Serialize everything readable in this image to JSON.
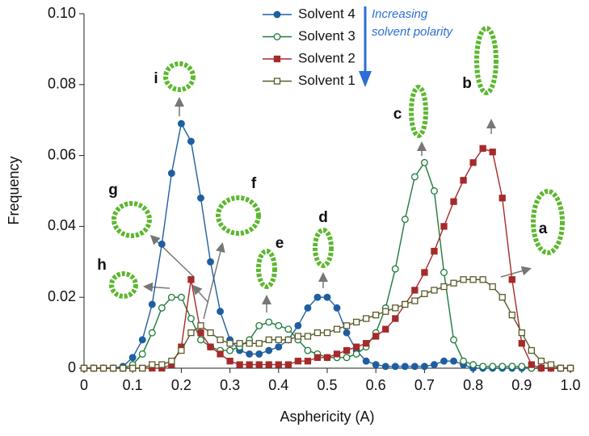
{
  "chart_data": {
    "type": "line",
    "x_label": "Asphericity (A)",
    "y_label": "Frequency",
    "x": [
      0,
      0.02,
      0.04,
      0.06,
      0.08,
      0.1,
      0.12,
      0.14,
      0.16,
      0.18,
      0.2,
      0.22,
      0.24,
      0.26,
      0.28,
      0.3,
      0.32,
      0.34,
      0.36,
      0.38,
      0.4,
      0.42,
      0.44,
      0.46,
      0.48,
      0.5,
      0.52,
      0.54,
      0.56,
      0.58,
      0.6,
      0.62,
      0.64,
      0.66,
      0.68,
      0.7,
      0.72,
      0.74,
      0.76,
      0.78,
      0.8,
      0.82,
      0.84,
      0.86,
      0.88,
      0.9,
      0.92,
      0.94,
      0.96,
      0.98,
      1
    ],
    "series": [
      {
        "name": "Solvent 4",
        "color": "#1f5fa0",
        "marker": "circle",
        "filled": true,
        "values": [
          0,
          0,
          0,
          0,
          0.0005,
          0.003,
          0.008,
          0.018,
          0.035,
          0.055,
          0.069,
          0.064,
          0.048,
          0.03,
          0.016,
          0.008,
          0.005,
          0.004,
          0.004,
          0.005,
          0.006,
          0.008,
          0.012,
          0.017,
          0.02,
          0.02,
          0.017,
          0.01,
          0.005,
          0.002,
          0.001,
          0.0005,
          0.0005,
          0.0005,
          0.0005,
          0.0005,
          0.001,
          0.002,
          0.002,
          0.001,
          0,
          0,
          0,
          0,
          0,
          0,
          0,
          0,
          0,
          0,
          0
        ]
      },
      {
        "name": "Solvent 3",
        "color": "#1e7a3a",
        "marker": "circle",
        "filled": false,
        "values": [
          0,
          0,
          0,
          0,
          0,
          0.001,
          0.004,
          0.01,
          0.017,
          0.02,
          0.02,
          0.014,
          0.008,
          0.006,
          0.005,
          0.005,
          0.006,
          0.008,
          0.012,
          0.013,
          0.012,
          0.011,
          0.008,
          0.005,
          0.004,
          0.003,
          0.003,
          0.003,
          0.004,
          0.006,
          0.01,
          0.017,
          0.028,
          0.042,
          0.054,
          0.058,
          0.05,
          0.027,
          0.008,
          0.002,
          0.001,
          0.0005,
          0.0005,
          0.0005,
          0.0005,
          0.0005,
          0,
          0,
          0,
          0,
          0
        ]
      },
      {
        "name": "Solvent 2",
        "color": "#a52a2a",
        "marker": "square",
        "filled": true,
        "values": [
          0,
          0,
          0,
          0,
          0,
          0,
          0,
          0,
          0,
          0.001,
          0.006,
          0.025,
          0.01,
          0.006,
          0.004,
          0.002,
          0.001,
          0.001,
          0.001,
          0.001,
          0.001,
          0.001,
          0.002,
          0.002,
          0.003,
          0.003,
          0.004,
          0.005,
          0.006,
          0.007,
          0.009,
          0.011,
          0.014,
          0.018,
          0.022,
          0.027,
          0.033,
          0.04,
          0.047,
          0.053,
          0.058,
          0.062,
          0.061,
          0.048,
          0.025,
          0.007,
          0.001,
          0,
          0,
          0,
          0
        ]
      },
      {
        "name": "Solvent 1",
        "color": "#5a5a2a",
        "marker": "square",
        "filled": false,
        "values": [
          0,
          0,
          0,
          0,
          0,
          0,
          0,
          0.001,
          0.001,
          0.002,
          0.005,
          0.01,
          0.012,
          0.01,
          0.008,
          0.007,
          0.007,
          0.007,
          0.007,
          0.008,
          0.008,
          0.008,
          0.009,
          0.009,
          0.01,
          0.01,
          0.011,
          0.012,
          0.013,
          0.014,
          0.015,
          0.016,
          0.017,
          0.018,
          0.019,
          0.021,
          0.022,
          0.023,
          0.024,
          0.025,
          0.025,
          0.025,
          0.023,
          0.02,
          0.015,
          0.01,
          0.005,
          0.002,
          0.001,
          0,
          0
        ]
      }
    ],
    "xlim": [
      0,
      1
    ],
    "ylim": [
      0,
      0.1
    ],
    "xticks": [
      0,
      0.1,
      0.2,
      0.3,
      0.4,
      0.5,
      0.6,
      0.7,
      0.8,
      0.9,
      {
        "value": 1,
        "label": "1.0"
      }
    ],
    "yticks": [
      0,
      0.02,
      0.04,
      0.06,
      0.08,
      {
        "value": 0.1,
        "label": "0.10"
      }
    ],
    "legend": "top-center",
    "polarity_note": [
      "Increasing",
      "solvent polarity"
    ],
    "annotations": [
      "a",
      "b",
      "c",
      "d",
      "e",
      "f",
      "g",
      "h",
      "i"
    ]
  }
}
